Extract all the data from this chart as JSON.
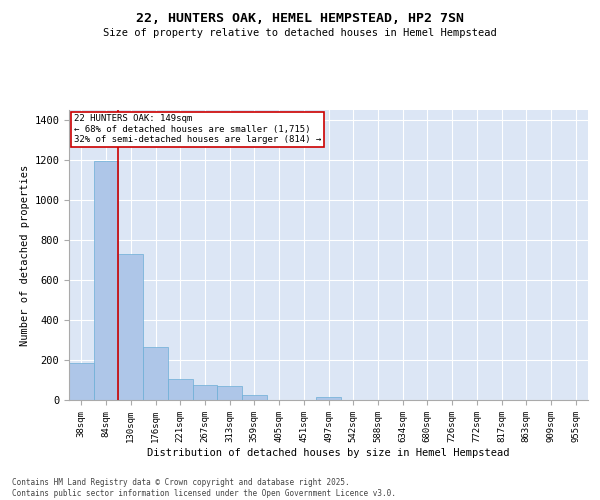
{
  "title": "22, HUNTERS OAK, HEMEL HEMPSTEAD, HP2 7SN",
  "subtitle": "Size of property relative to detached houses in Hemel Hempstead",
  "xlabel": "Distribution of detached houses by size in Hemel Hempstead",
  "ylabel": "Number of detached properties",
  "footer": "Contains HM Land Registry data © Crown copyright and database right 2025.\nContains public sector information licensed under the Open Government Licence v3.0.",
  "categories": [
    "38sqm",
    "84sqm",
    "130sqm",
    "176sqm",
    "221sqm",
    "267sqm",
    "313sqm",
    "359sqm",
    "405sqm",
    "451sqm",
    "497sqm",
    "542sqm",
    "588sqm",
    "634sqm",
    "680sqm",
    "726sqm",
    "772sqm",
    "817sqm",
    "863sqm",
    "909sqm",
    "955sqm"
  ],
  "values": [
    185,
    1195,
    730,
    265,
    105,
    75,
    70,
    25,
    0,
    0,
    15,
    0,
    0,
    0,
    0,
    0,
    0,
    0,
    0,
    0,
    0
  ],
  "bar_color": "#aec6e8",
  "bar_edge_color": "#6baed6",
  "background_color": "#dce6f5",
  "grid_color": "#ffffff",
  "property_line_color": "#cc0000",
  "annotation_text": "22 HUNTERS OAK: 149sqm\n← 68% of detached houses are smaller (1,715)\n32% of semi-detached houses are larger (814) →",
  "annotation_box_color": "#cc0000",
  "ylim": [
    0,
    1450
  ],
  "yticks": [
    0,
    200,
    400,
    600,
    800,
    1000,
    1200,
    1400
  ]
}
